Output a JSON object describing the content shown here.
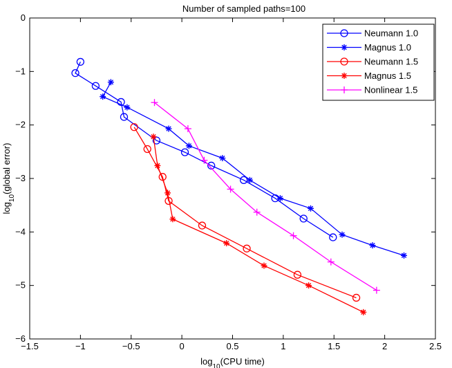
{
  "chart_data": {
    "type": "line",
    "title": "Number of sampled paths=100",
    "xlabel": {
      "base": "log",
      "sub": "10",
      "rest": "(CPU time)"
    },
    "ylabel": {
      "base": "log",
      "sub": "10",
      "rest": "(global error)"
    },
    "xlim": [
      -1.5,
      2.5
    ],
    "ylim": [
      -6,
      0
    ],
    "xticks": [
      -1.5,
      -1,
      -0.5,
      0,
      0.5,
      1,
      1.5,
      2,
      2.5
    ],
    "yticks": [
      -6,
      -5,
      -4,
      -3,
      -2,
      -1,
      0
    ],
    "xtick_labels": [
      "−1.5",
      "−1",
      "−0.5",
      "0",
      "0.5",
      "1",
      "1.5",
      "2",
      "2.5"
    ],
    "ytick_labels": [
      "−6",
      "−5",
      "−4",
      "−3",
      "−2",
      "−1",
      "0"
    ],
    "grid": false,
    "legend_position": "top-right",
    "series": [
      {
        "name": "Neumann 1.0",
        "color": "#0000ff",
        "marker": "circle",
        "points": [
          [
            -1.0,
            -0.82
          ],
          [
            -1.05,
            -1.03
          ],
          [
            -0.85,
            -1.27
          ],
          [
            -0.6,
            -1.57
          ],
          [
            -0.57,
            -1.85
          ],
          [
            -0.25,
            -2.29
          ],
          [
            0.03,
            -2.51
          ],
          [
            0.29,
            -2.76
          ],
          [
            0.61,
            -3.03
          ],
          [
            0.92,
            -3.37
          ],
          [
            1.2,
            -3.75
          ],
          [
            1.49,
            -4.1
          ]
        ]
      },
      {
        "name": "Magnus 1.0",
        "color": "#0000ff",
        "marker": "star",
        "points": [
          [
            -0.7,
            -1.2
          ],
          [
            -0.78,
            -1.47
          ],
          [
            -0.54,
            -1.67
          ],
          [
            -0.13,
            -2.07
          ],
          [
            0.07,
            -2.39
          ],
          [
            0.4,
            -2.62
          ],
          [
            0.67,
            -3.03
          ],
          [
            0.97,
            -3.37
          ],
          [
            1.27,
            -3.56
          ],
          [
            1.58,
            -4.05
          ],
          [
            1.88,
            -4.25
          ],
          [
            2.19,
            -4.44
          ]
        ]
      },
      {
        "name": "Neumann 1.5",
        "color": "#ff0000",
        "marker": "circle",
        "points": [
          [
            -0.47,
            -2.04
          ],
          [
            -0.34,
            -2.45
          ],
          [
            -0.19,
            -2.97
          ],
          [
            -0.13,
            -3.42
          ],
          [
            0.2,
            -3.88
          ],
          [
            0.64,
            -4.31
          ],
          [
            1.14,
            -4.8
          ],
          [
            1.72,
            -5.23
          ]
        ]
      },
      {
        "name": "Magnus 1.5",
        "color": "#ff0000",
        "marker": "star",
        "points": [
          [
            -0.28,
            -2.22
          ],
          [
            -0.24,
            -2.76
          ],
          [
            -0.14,
            -3.27
          ],
          [
            -0.09,
            -3.76
          ],
          [
            0.44,
            -4.21
          ],
          [
            0.81,
            -4.63
          ],
          [
            1.25,
            -5.0
          ],
          [
            1.79,
            -5.5
          ]
        ]
      },
      {
        "name": "Nonlinear 1.5",
        "color": "#ff00ff",
        "marker": "plus",
        "points": [
          [
            -0.27,
            -1.58
          ],
          [
            0.06,
            -2.07
          ],
          [
            0.22,
            -2.66
          ],
          [
            0.48,
            -3.2
          ],
          [
            0.74,
            -3.63
          ],
          [
            1.1,
            -4.07
          ],
          [
            1.47,
            -4.56
          ],
          [
            1.92,
            -5.09
          ]
        ]
      }
    ]
  }
}
